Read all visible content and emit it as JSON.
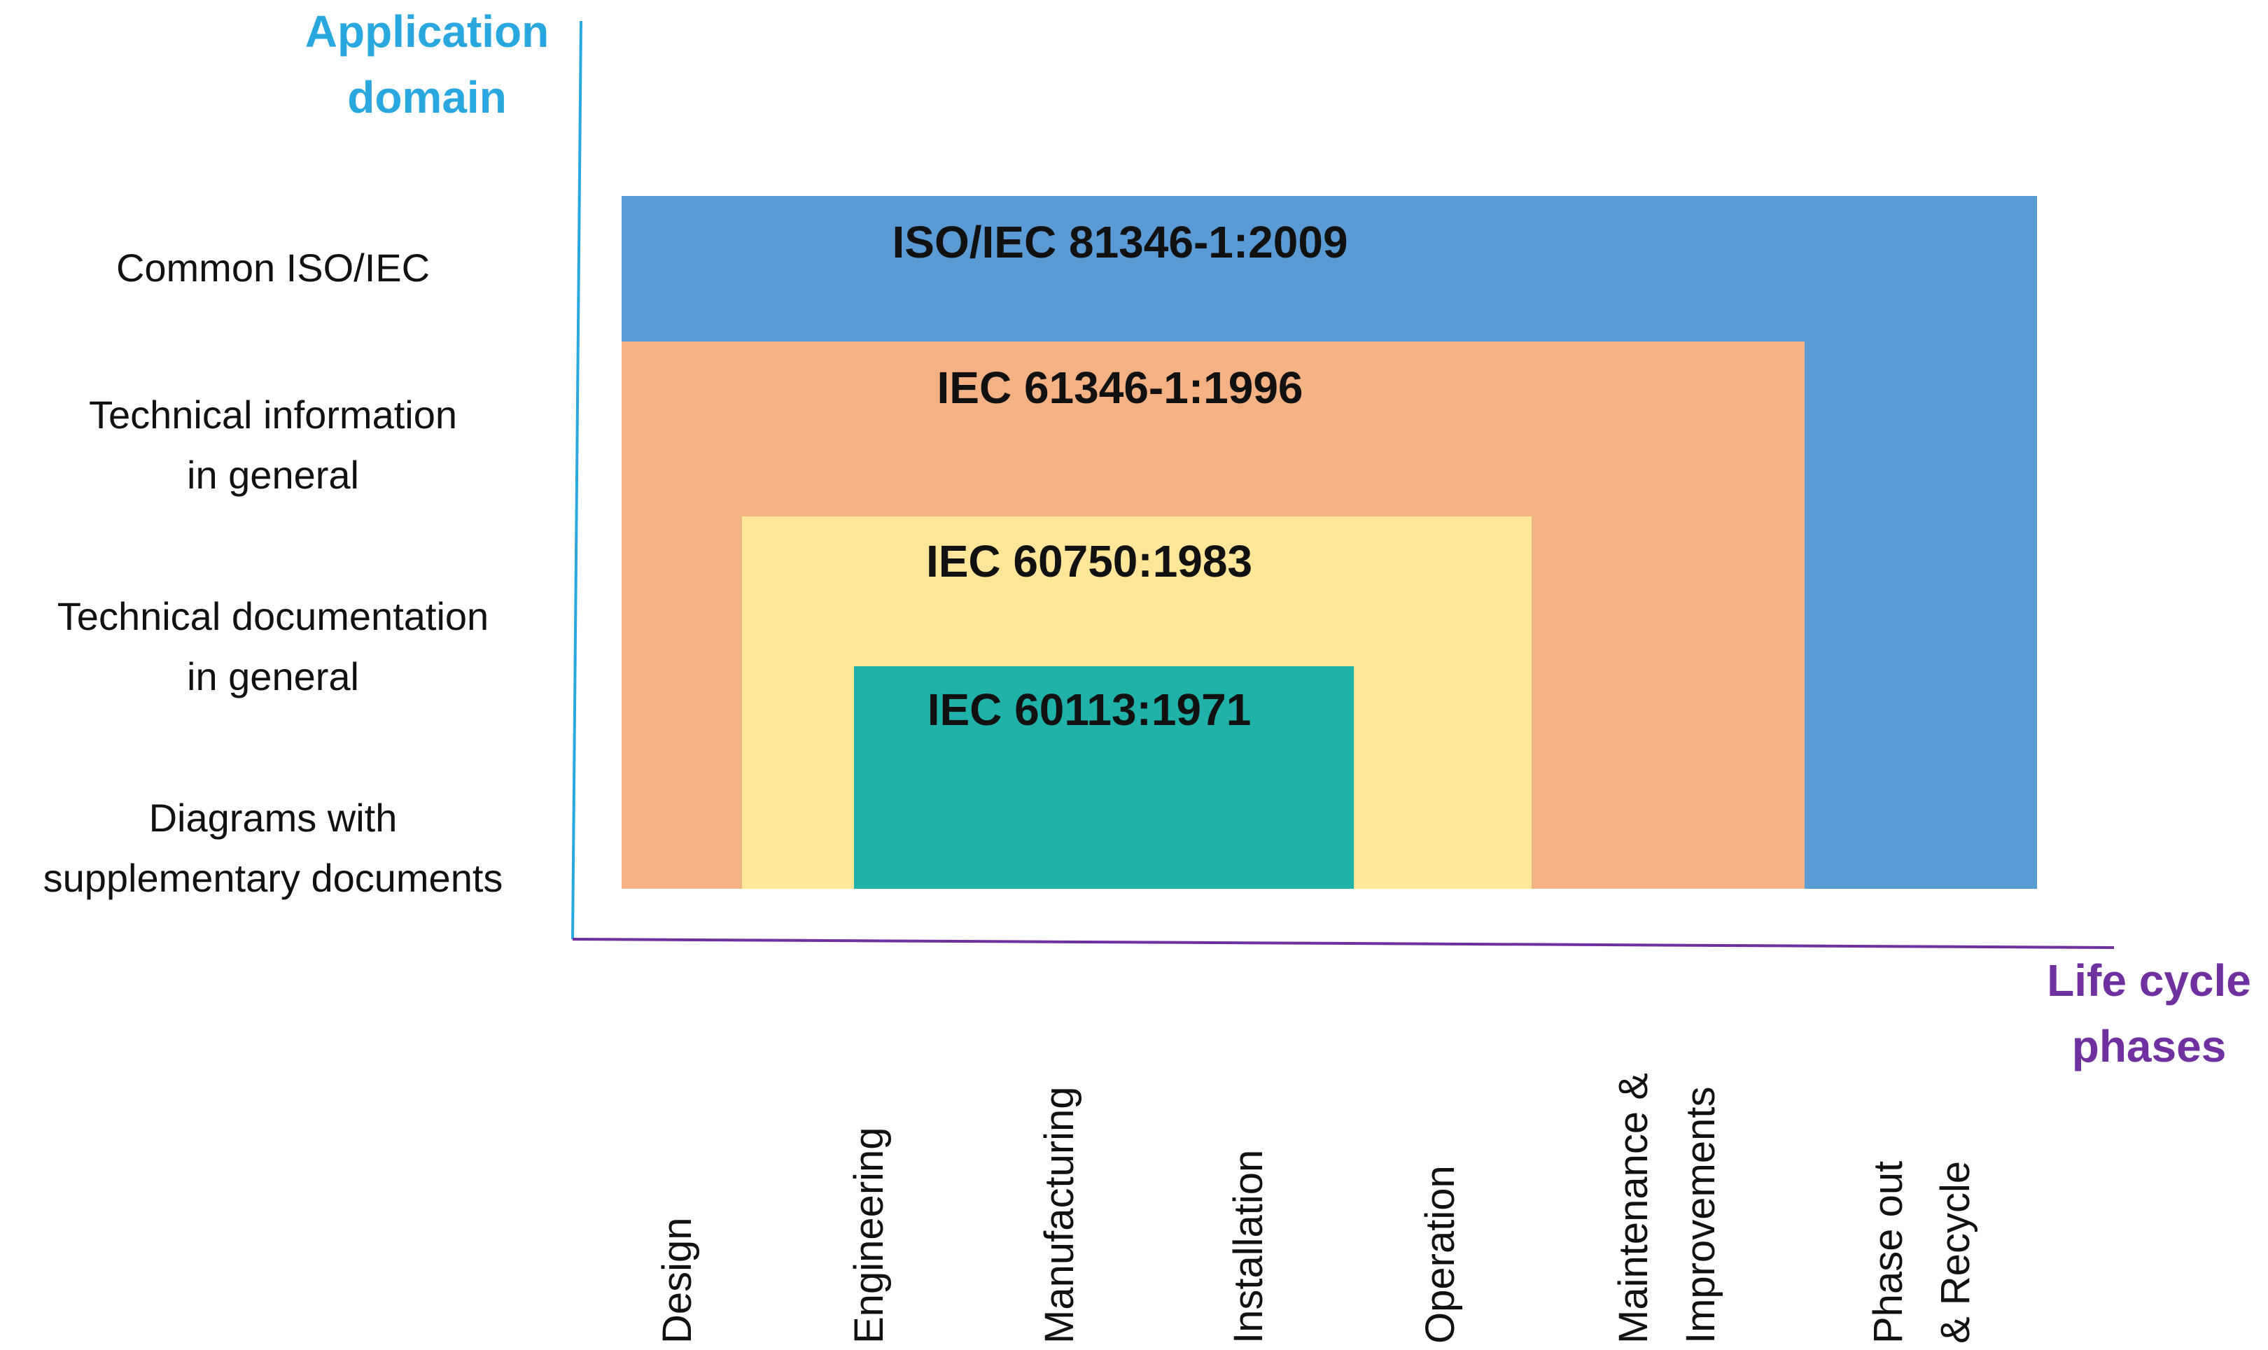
{
  "diagram": {
    "y_axis_title": "Application\ndomain",
    "x_axis_title": "Life cycle\nphases",
    "colors": {
      "y_axis": "#29a8e0",
      "x_axis": "#7030a0"
    },
    "domains": [
      "Common ISO/IEC",
      "Technical information\nin general",
      "Technical documentation\nin general",
      "Diagrams with\nsupplementary documents"
    ],
    "phases": [
      "Design",
      "Engineering",
      "Manufacturing",
      "Installation",
      "Operation",
      "Maintenance &\nImprovements",
      "Phase out\n& Recycle"
    ],
    "standards": [
      {
        "label": "ISO/IEC 81346-1:2009",
        "color": "#5b9bd5",
        "phases": "Design – Phase out & Recycle",
        "domain": "Common ISO/IEC"
      },
      {
        "label": "IEC 61346-1:1996",
        "color": "#f4b183",
        "phases": "Design – Maintenance & Improvements",
        "domain": "Technical information in general"
      },
      {
        "label": "IEC 60750:1983",
        "color": "#ffe699",
        "phases": "Engineering – Operation",
        "domain": "Technical documentation in general"
      },
      {
        "label": "IEC 60113:1971",
        "color": "#20b2aa",
        "phases": "Engineering – Operation",
        "domain": "Diagrams with supplementary documents"
      }
    ]
  }
}
